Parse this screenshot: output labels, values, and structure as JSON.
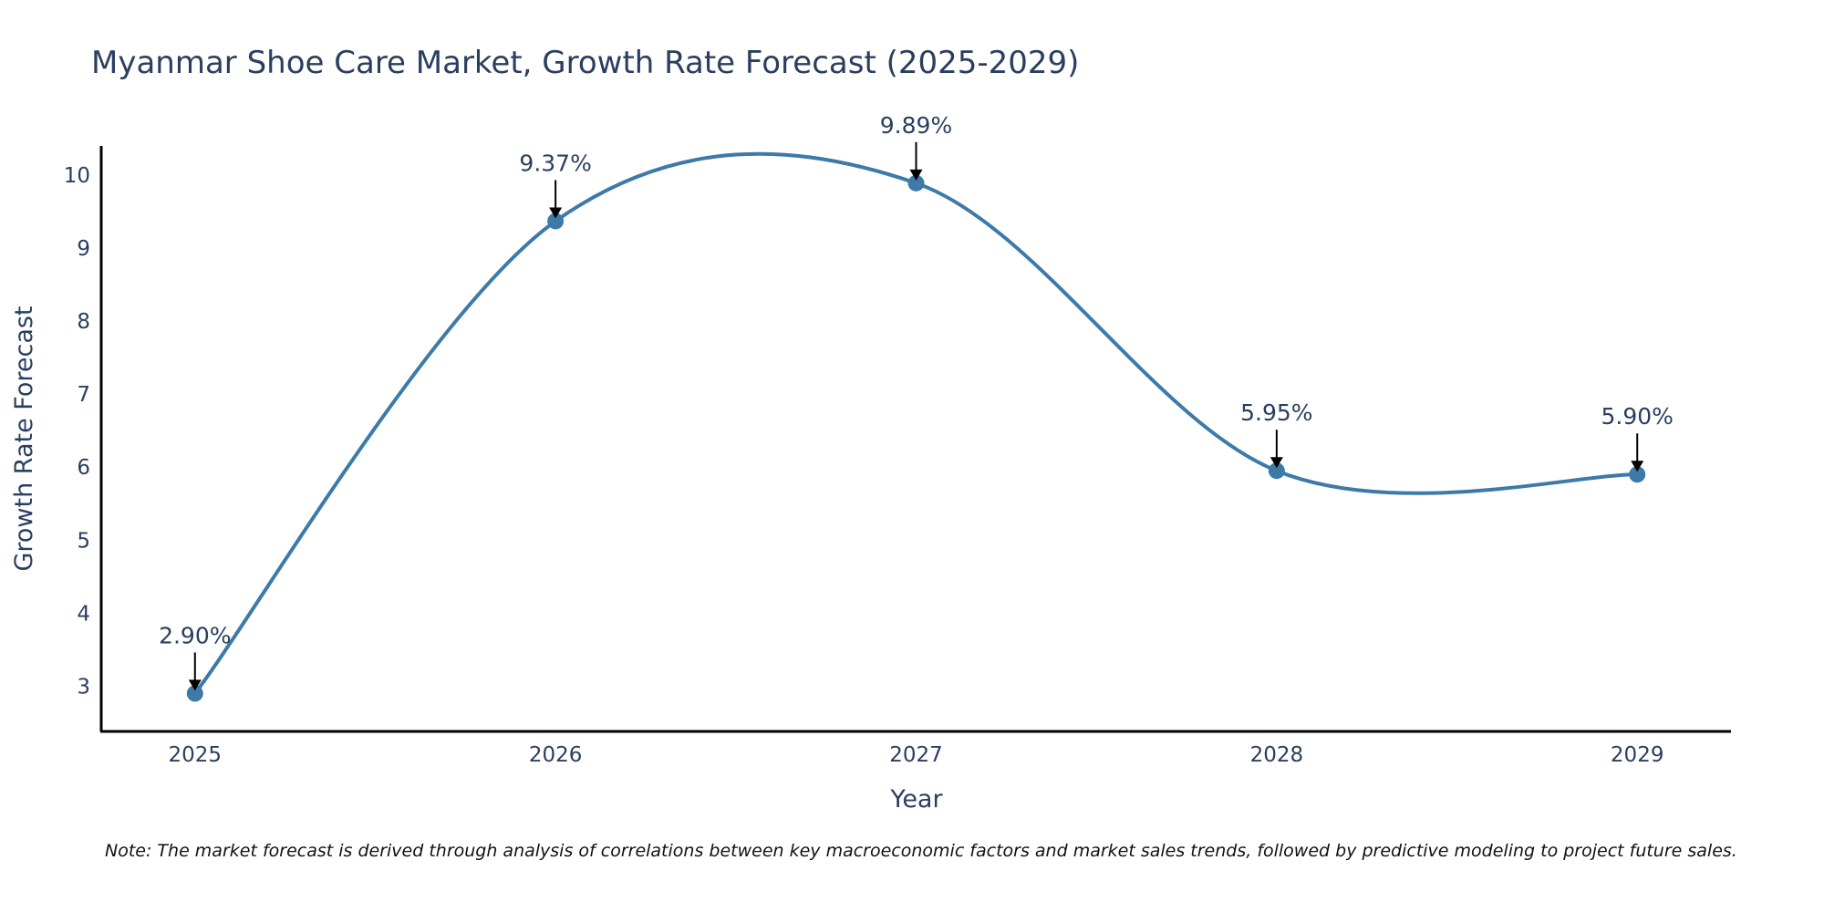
{
  "chart_data": {
    "type": "line",
    "title": "Myanmar Shoe Care Market, Growth Rate Forecast (2025-2029)",
    "xlabel": "Year",
    "ylabel": "Growth Rate Forecast",
    "categories": [
      "2025",
      "2026",
      "2027",
      "2028",
      "2029"
    ],
    "x": [
      2025,
      2026,
      2027,
      2028,
      2029
    ],
    "values": [
      2.9,
      9.37,
      9.89,
      5.95,
      5.9
    ],
    "data_labels": [
      "2.90%",
      "9.37%",
      "9.89%",
      "5.95%",
      "5.90%"
    ],
    "yticks": [
      3,
      4,
      5,
      6,
      7,
      8,
      9,
      10
    ],
    "ytick_labels": [
      "3",
      "4",
      "5",
      "6",
      "7",
      "8",
      "9",
      "10"
    ],
    "ylim": [
      2.38,
      10.4
    ],
    "xlim": [
      2024.74,
      2029.26
    ],
    "grid": false,
    "line_shape": "spline",
    "series_color": "#3d7aa8",
    "text_color": "#2a3f5f",
    "note": "Note: The market forecast is derived through analysis of correlations between key macroeconomic factors and market sales trends, followed by predictive modeling to project future sales."
  }
}
